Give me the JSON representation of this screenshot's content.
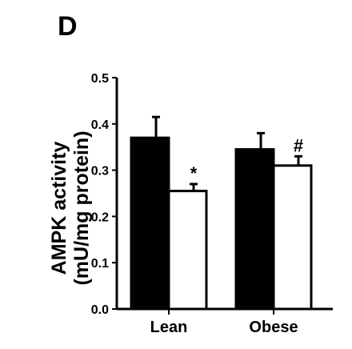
{
  "panel_label": "D",
  "chart_data": {
    "type": "bar",
    "categories": [
      "Lean",
      "Obese"
    ],
    "series": [
      {
        "fill": "#000000",
        "values": [
          0.37,
          0.345
        ],
        "errors": [
          0.045,
          0.035
        ],
        "annotations": [
          "",
          ""
        ]
      },
      {
        "fill": "#ffffff",
        "values": [
          0.255,
          0.31
        ],
        "errors": [
          0.015,
          0.02
        ],
        "annotations": [
          "*",
          "#"
        ]
      }
    ],
    "ylabel_lines": [
      "AMPK activity",
      "(mU/mg protein)"
    ],
    "ylim": [
      0,
      0.5
    ],
    "yticks": [
      "0.0",
      "0.1",
      "0.2",
      "0.3",
      "0.4",
      "0.5"
    ],
    "grid": false,
    "colors": {
      "axis": "#000000",
      "bar_dark": "#000000",
      "bar_light": "#ffffff"
    }
  }
}
